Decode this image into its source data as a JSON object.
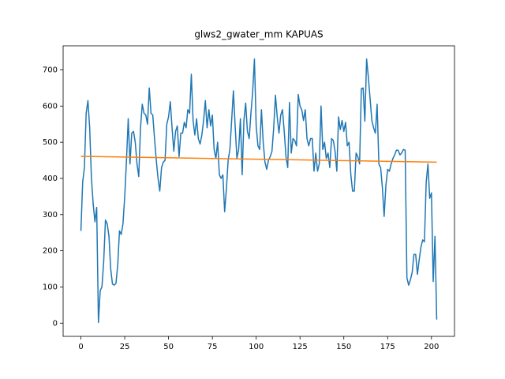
{
  "chart_data": {
    "type": "line",
    "title": "glws2_gwater_mm KAPUAS",
    "xlim": [
      -10.15,
      213.15
    ],
    "ylim": [
      -36.5,
      766.5
    ],
    "xticks": [
      0,
      25,
      50,
      75,
      100,
      125,
      150,
      175,
      200
    ],
    "yticks": [
      0,
      100,
      200,
      300,
      400,
      500,
      600,
      700
    ],
    "series": [
      {
        "color": "#1f77b4",
        "x": [
          0,
          1,
          2,
          3,
          4,
          5,
          6,
          7,
          8,
          9,
          10,
          11,
          12,
          13,
          14,
          15,
          16,
          17,
          18,
          19,
          20,
          21,
          22,
          23,
          24,
          25,
          26,
          27,
          28,
          29,
          30,
          31,
          32,
          33,
          34,
          35,
          36,
          37,
          38,
          39,
          40,
          41,
          42,
          43,
          44,
          45,
          46,
          47,
          48,
          49,
          50,
          51,
          52,
          53,
          54,
          55,
          56,
          57,
          58,
          59,
          60,
          61,
          62,
          63,
          64,
          65,
          66,
          67,
          68,
          69,
          70,
          71,
          72,
          73,
          74,
          75,
          76,
          77,
          78,
          79,
          80,
          81,
          82,
          83,
          84,
          85,
          86,
          87,
          88,
          89,
          90,
          91,
          92,
          93,
          94,
          95,
          96,
          97,
          98,
          99,
          100,
          101,
          102,
          103,
          104,
          105,
          106,
          107,
          108,
          109,
          110,
          111,
          112,
          113,
          114,
          115,
          116,
          117,
          118,
          119,
          120,
          121,
          122,
          123,
          124,
          125,
          126,
          127,
          128,
          129,
          130,
          131,
          132,
          133,
          134,
          135,
          136,
          137,
          138,
          139,
          140,
          141,
          142,
          143,
          144,
          145,
          146,
          147,
          148,
          149,
          150,
          151,
          152,
          153,
          154,
          155,
          156,
          157,
          158,
          159,
          160,
          161,
          162,
          163,
          164,
          165,
          166,
          167,
          168,
          169,
          170,
          171,
          172,
          173,
          174,
          175,
          176,
          177,
          178,
          179,
          180,
          181,
          182,
          183,
          184,
          185,
          186,
          187,
          188,
          189,
          190,
          191,
          192,
          193,
          194,
          195,
          196,
          197,
          198,
          199,
          200,
          201,
          202,
          203
        ],
        "values": [
          255,
          390,
          430,
          580,
          615,
          540,
          400,
          330,
          280,
          320,
          2,
          90,
          100,
          170,
          285,
          275,
          240,
          150,
          108,
          105,
          110,
          160,
          255,
          245,
          275,
          350,
          450,
          565,
          440,
          525,
          530,
          500,
          440,
          405,
          540,
          605,
          580,
          575,
          550,
          650,
          580,
          575,
          510,
          450,
          400,
          365,
          430,
          445,
          450,
          550,
          570,
          612,
          540,
          475,
          530,
          545,
          460,
          525,
          525,
          555,
          540,
          590,
          580,
          688,
          560,
          520,
          565,
          510,
          495,
          520,
          560,
          615,
          540,
          590,
          545,
          575,
          480,
          455,
          500,
          410,
          400,
          410,
          308,
          370,
          450,
          480,
          560,
          642,
          545,
          455,
          480,
          565,
          410,
          560,
          608,
          530,
          510,
          580,
          640,
          730,
          545,
          490,
          480,
          590,
          500,
          445,
          425,
          450,
          460,
          475,
          540,
          630,
          570,
          525,
          575,
          590,
          530,
          460,
          430,
          610,
          470,
          510,
          505,
          490,
          632,
          600,
          590,
          560,
          590,
          510,
          490,
          510,
          510,
          420,
          470,
          420,
          440,
          600,
          480,
          500,
          455,
          470,
          430,
          510,
          505,
          475,
          420,
          570,
          535,
          560,
          530,
          555,
          490,
          500,
          410,
          365,
          365,
          470,
          460,
          440,
          648,
          650,
          558,
          730,
          680,
          620,
          560,
          540,
          525,
          605,
          440,
          430,
          375,
          295,
          380,
          425,
          420,
          440,
          455,
          465,
          478,
          478,
          465,
          470,
          480,
          478,
          125,
          105,
          120,
          140,
          190,
          190,
          135,
          175,
          210,
          230,
          225,
          390,
          440,
          345,
          360,
          115,
          240,
          10
        ]
      },
      {
        "color": "#ff7f0e",
        "x": [
          0,
          203
        ],
        "values": [
          461,
          445
        ]
      }
    ]
  }
}
